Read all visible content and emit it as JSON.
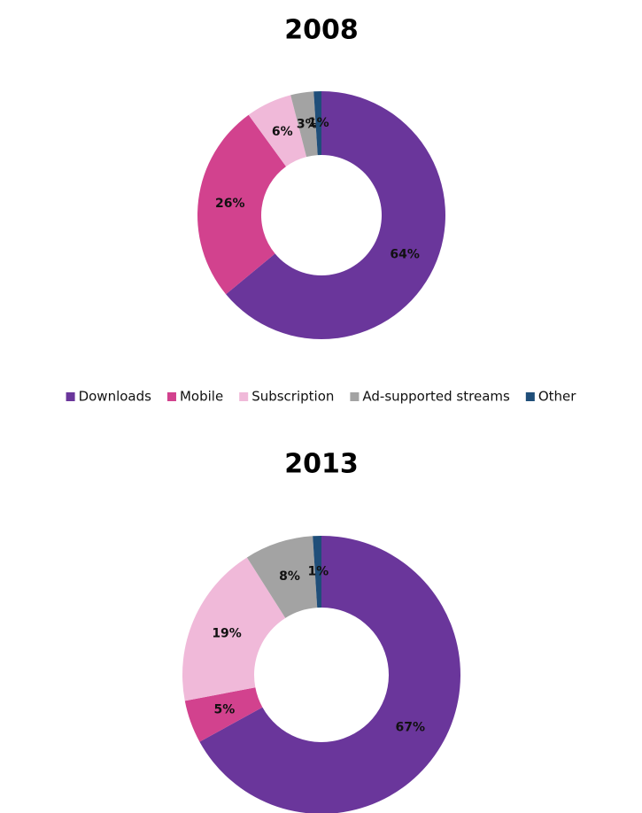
{
  "chart_data": [
    {
      "type": "donut",
      "title": "2008",
      "categories": [
        "Downloads",
        "Mobile",
        "Subscription",
        "Ad-supported streams",
        "Other"
      ],
      "colors": [
        "#6a369b",
        "#d2428e",
        "#f0b9d9",
        "#a3a3a3",
        "#1f4e79"
      ],
      "values": [
        64,
        26,
        6,
        3,
        1
      ],
      "value_labels": [
        "64%",
        "26%",
        "6%",
        "3%",
        "1%"
      ],
      "legend": "bottom"
    },
    {
      "type": "donut",
      "title": "2013",
      "colors": [
        "#6a369b",
        "#d2428e",
        "#f0b9d9",
        "#a3a3a3",
        "#1f4e79"
      ],
      "values": [
        67,
        5,
        19,
        8,
        1
      ],
      "value_labels": [
        "67%",
        "5%",
        "19%",
        "8%",
        "1%"
      ]
    }
  ]
}
